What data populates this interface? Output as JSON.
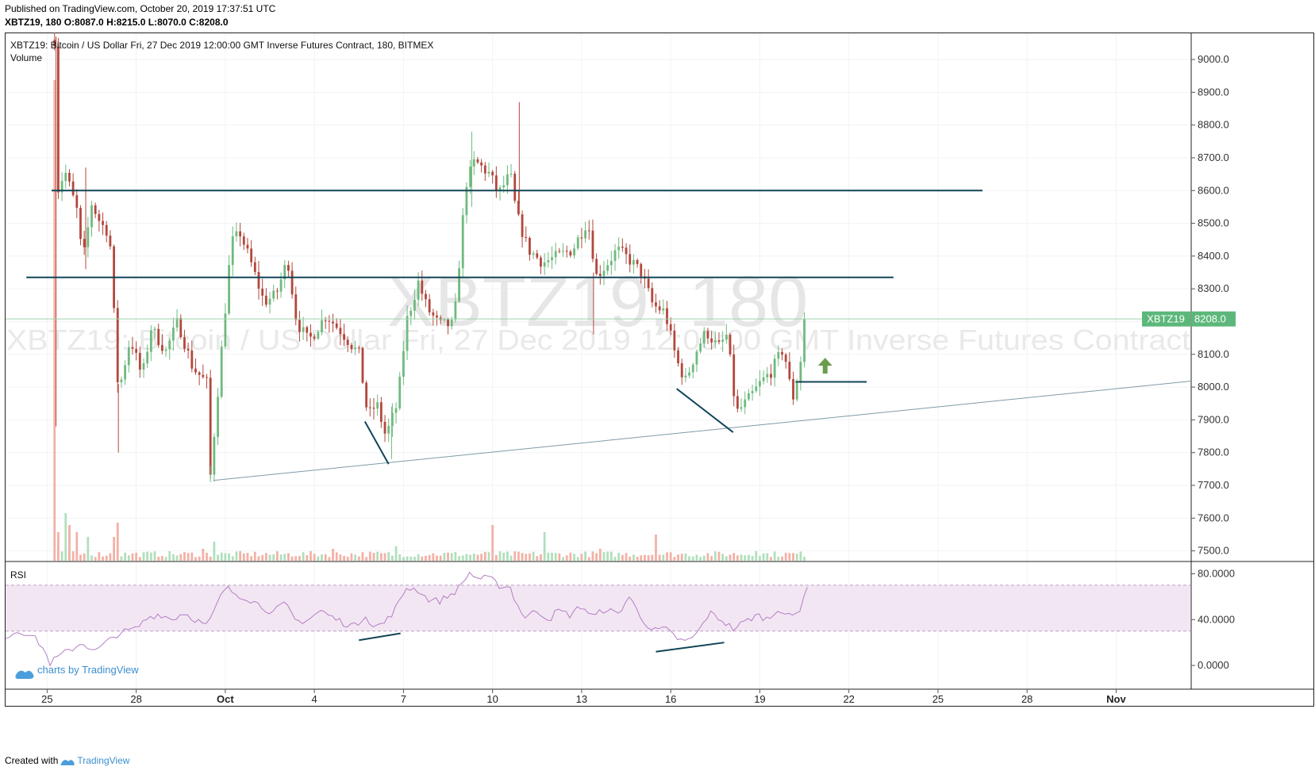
{
  "published": "Published on TradingView.com, October 20, 2019 17:37:51 UTC",
  "ohlc_line": "XBTZ19, 180 O:8087.0 H:8215.0 L:8070.0 C:8208.0",
  "footer": {
    "created_with": "Created with",
    "brand": "TradingView"
  },
  "colors": {
    "up": "#6fba7f",
    "down": "#b3473c",
    "level_line": "#124558",
    "trend_line": "#7f9aa8",
    "rsi_band": "#f3e6f3",
    "rsi_line": "#b27fc4",
    "last_price_bg": "#5cb87a",
    "arrow": "#6a9e4e"
  },
  "chart_data": {
    "type": "candlestick",
    "symbol_title": "XBTZ19: Bitcoin / US Dollar Fri, 27 Dec 2019 12:00:00 GMT Inverse Futures Contract, 180, BITMEX",
    "volume_label": "Volume",
    "watermark_main": "XBTZ19, 180",
    "watermark_sub": "XBTZ19: Bitcoin / US Dollar Fri, 27 Dec 2019 12:00:00 GMT Inverse Futures Contract",
    "timeframe": "180",
    "last_price": {
      "label": "XBTZ19",
      "value": "8208.0",
      "numeric": 8208
    },
    "ylim": [
      7470,
      9080
    ],
    "y_ticks": [
      "9000.0",
      "8900.0",
      "8800.0",
      "8700.0",
      "8600.0",
      "8500.0",
      "8400.0",
      "8300.0",
      "8200.0",
      "8100.0",
      "8000.0",
      "7900.0",
      "7800.0",
      "7700.0",
      "7600.0",
      "7500.0"
    ],
    "x_ticks": [
      "25",
      "28",
      "Oct",
      "4",
      "7",
      "10",
      "13",
      "16",
      "19",
      "22",
      "25",
      "28",
      "Nov"
    ],
    "x_tick_days": [
      -0.2,
      2.8,
      5.8,
      8.8,
      11.8,
      14.8,
      17.8,
      20.8,
      23.8,
      26.8,
      29.8,
      32.8,
      35.8
    ],
    "x_range_days": [
      -1.6,
      38.3
    ],
    "price_path": [
      [
        0.05,
        9060
      ],
      [
        0.15,
        8600
      ],
      [
        0.4,
        8660
      ],
      [
        0.8,
        8540
      ],
      [
        1.0,
        8380
      ],
      [
        1.3,
        8560
      ],
      [
        1.6,
        8500
      ],
      [
        1.9,
        8470
      ],
      [
        2.2,
        7980
      ],
      [
        2.6,
        8150
      ],
      [
        3.0,
        8030
      ],
      [
        3.3,
        8180
      ],
      [
        3.8,
        8110
      ],
      [
        4.2,
        8200
      ],
      [
        4.7,
        8060
      ],
      [
        5.2,
        8010
      ],
      [
        5.3,
        7730
      ],
      [
        5.6,
        8040
      ],
      [
        6.0,
        8440
      ],
      [
        6.3,
        8470
      ],
      [
        6.7,
        8370
      ],
      [
        7.1,
        8260
      ],
      [
        7.5,
        8280
      ],
      [
        7.9,
        8390
      ],
      [
        8.2,
        8200
      ],
      [
        8.6,
        8140
      ],
      [
        9.2,
        8220
      ],
      [
        9.7,
        8170
      ],
      [
        10.3,
        8100
      ],
      [
        10.6,
        7910
      ],
      [
        10.9,
        7950
      ],
      [
        11.2,
        7850
      ],
      [
        11.6,
        7950
      ],
      [
        11.9,
        8200
      ],
      [
        12.3,
        8320
      ],
      [
        12.6,
        8240
      ],
      [
        13.0,
        8190
      ],
      [
        13.5,
        8190
      ],
      [
        13.9,
        8620
      ],
      [
        14.2,
        8690
      ],
      [
        14.7,
        8650
      ],
      [
        15.0,
        8590
      ],
      [
        15.4,
        8650
      ],
      [
        15.6,
        8530
      ],
      [
        16.0,
        8420
      ],
      [
        16.5,
        8380
      ],
      [
        17.0,
        8400
      ],
      [
        17.5,
        8420
      ],
      [
        18.0,
        8510
      ],
      [
        18.3,
        8340
      ],
      [
        18.6,
        8370
      ],
      [
        19.0,
        8420
      ],
      [
        19.4,
        8390
      ],
      [
        19.8,
        8350
      ],
      [
        20.2,
        8250
      ],
      [
        20.6,
        8230
      ],
      [
        21.0,
        8080
      ],
      [
        21.3,
        8020
      ],
      [
        21.7,
        8120
      ],
      [
        22.0,
        8170
      ],
      [
        22.4,
        8120
      ],
      [
        22.7,
        8160
      ],
      [
        23.0,
        7920
      ],
      [
        23.4,
        7960
      ],
      [
        23.8,
        8010
      ],
      [
        24.2,
        8050
      ],
      [
        24.6,
        8120
      ],
      [
        24.9,
        7960
      ],
      [
        25.1,
        8040
      ],
      [
        25.4,
        8208
      ]
    ],
    "volume_bars": [
      [
        0.1,
        1.0
      ],
      [
        0.2,
        0.12
      ],
      [
        0.4,
        0.2
      ],
      [
        0.6,
        0.15
      ],
      [
        0.8,
        0.12
      ],
      [
        1.2,
        0.1
      ],
      [
        2.0,
        0.1
      ],
      [
        2.2,
        0.16
      ],
      [
        5.0,
        0.05
      ],
      [
        5.4,
        0.08
      ],
      [
        9.4,
        0.05
      ],
      [
        11.6,
        0.06
      ],
      [
        14.8,
        0.15
      ],
      [
        16.5,
        0.12
      ],
      [
        18.4,
        0.05
      ],
      [
        20.3,
        0.11
      ],
      [
        23.7,
        0.04
      ]
    ],
    "horizontal_levels": [
      {
        "price": 8600,
        "from_day": -0.05,
        "to_day": 31.3
      },
      {
        "price": 8335,
        "from_day": -0.9,
        "to_day": 28.3
      },
      {
        "price": 8016,
        "from_day": 25.0,
        "to_day": 27.4
      }
    ],
    "trend_line": {
      "from": [
        5.4,
        7715
      ],
      "to": [
        38.3,
        8018
      ]
    },
    "divergence_marks_price": [
      {
        "from": [
          10.5,
          7895
        ],
        "to": [
          11.3,
          7765
        ]
      },
      {
        "from": [
          21.0,
          7995
        ],
        "to": [
          22.9,
          7862
        ]
      }
    ],
    "up_arrow": {
      "day": 26.0,
      "price": 8070
    },
    "rsi": {
      "label": "RSI",
      "ylim": [
        -20,
        90
      ],
      "y_ticks": [
        "80.0000",
        "40.0000",
        "0.0000"
      ],
      "band": [
        30,
        70
      ],
      "values_path": [
        [
          -1.6,
          25
        ],
        [
          -1.2,
          30
        ],
        [
          -0.8,
          28
        ],
        [
          -0.4,
          18
        ],
        [
          -0.1,
          2
        ],
        [
          0.2,
          8
        ],
        [
          0.6,
          14
        ],
        [
          1.0,
          20
        ],
        [
          1.4,
          12
        ],
        [
          1.8,
          20
        ],
        [
          2.2,
          28
        ],
        [
          2.8,
          32
        ],
        [
          3.2,
          42
        ],
        [
          3.6,
          45
        ],
        [
          4.0,
          40
        ],
        [
          4.4,
          46
        ],
        [
          4.8,
          40
        ],
        [
          5.2,
          34
        ],
        [
          5.5,
          52
        ],
        [
          5.8,
          68
        ],
        [
          6.2,
          62
        ],
        [
          6.6,
          58
        ],
        [
          7.0,
          52
        ],
        [
          7.4,
          46
        ],
        [
          7.8,
          54
        ],
        [
          8.2,
          38
        ],
        [
          8.6,
          40
        ],
        [
          9.0,
          48
        ],
        [
          9.4,
          42
        ],
        [
          9.8,
          37
        ],
        [
          10.2,
          34
        ],
        [
          10.5,
          45
        ],
        [
          10.8,
          33
        ],
        [
          11.2,
          38
        ],
        [
          11.6,
          52
        ],
        [
          11.9,
          68
        ],
        [
          12.3,
          66
        ],
        [
          12.6,
          58
        ],
        [
          13.0,
          56
        ],
        [
          13.4,
          62
        ],
        [
          13.7,
          68
        ],
        [
          14.0,
          81
        ],
        [
          14.3,
          76
        ],
        [
          14.7,
          76
        ],
        [
          15.0,
          70
        ],
        [
          15.4,
          68
        ],
        [
          15.6,
          54
        ],
        [
          15.9,
          42
        ],
        [
          16.3,
          48
        ],
        [
          16.7,
          40
        ],
        [
          17.0,
          48
        ],
        [
          17.4,
          44
        ],
        [
          17.8,
          52
        ],
        [
          18.2,
          42
        ],
        [
          18.6,
          50
        ],
        [
          19.0,
          44
        ],
        [
          19.4,
          60
        ],
        [
          19.8,
          42
        ],
        [
          20.2,
          30
        ],
        [
          20.6,
          32
        ],
        [
          21.0,
          24
        ],
        [
          21.3,
          20
        ],
        [
          21.7,
          28
        ],
        [
          22.1,
          46
        ],
        [
          22.5,
          40
        ],
        [
          22.9,
          32
        ],
        [
          23.3,
          38
        ],
        [
          23.7,
          44
        ],
        [
          24.1,
          40
        ],
        [
          24.4,
          50
        ],
        [
          24.8,
          42
        ],
        [
          25.1,
          46
        ],
        [
          25.4,
          70
        ]
      ],
      "divergence_marks": [
        {
          "from": [
            10.3,
            22
          ],
          "to": [
            11.7,
            28
          ]
        },
        {
          "from": [
            20.3,
            12
          ],
          "to": [
            22.6,
            20
          ]
        }
      ]
    },
    "credit": "charts by TradingView"
  }
}
